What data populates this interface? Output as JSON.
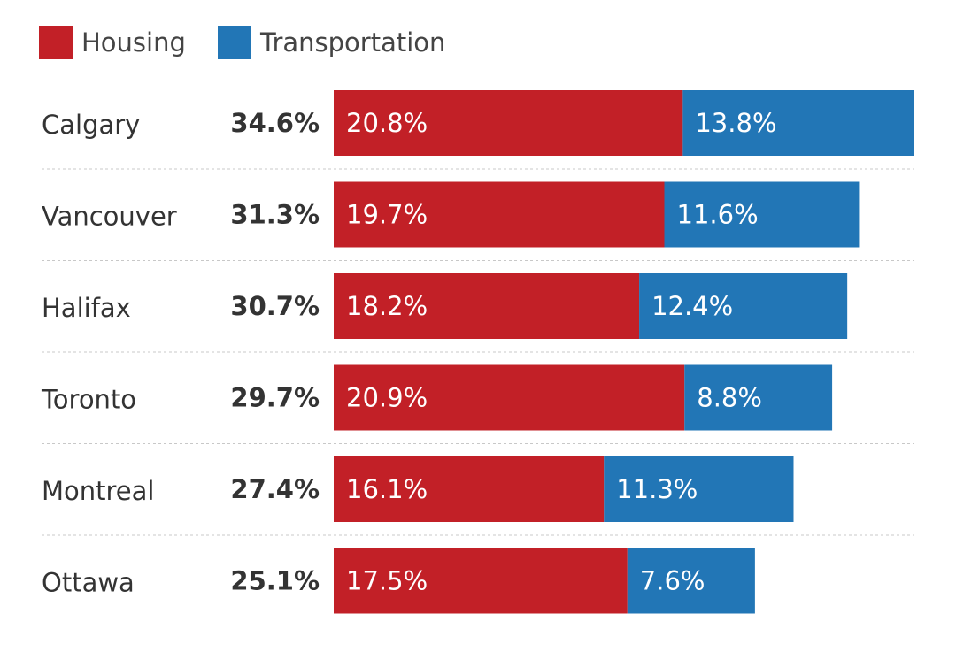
{
  "chart_data": {
    "type": "bar",
    "orientation": "horizontal",
    "stacked": true,
    "title": "",
    "xlabel": "",
    "ylabel": "",
    "categories": [
      "Calgary",
      "Vancouver",
      "Halifax",
      "Toronto",
      "Montreal",
      "Ottawa"
    ],
    "totals": [
      "34.6%",
      "31.3%",
      "30.7%",
      "29.7%",
      "27.4%",
      "25.1%"
    ],
    "series": [
      {
        "name": "Housing",
        "color": "#c22027",
        "values": [
          20.8,
          19.7,
          18.2,
          20.9,
          16.1,
          17.5
        ],
        "labels": [
          "20.8%",
          "19.7%",
          "18.2%",
          "20.9%",
          "16.1%",
          "17.5%"
        ]
      },
      {
        "name": "Transportation",
        "color": "#2276b6",
        "values": [
          13.8,
          11.6,
          12.4,
          8.8,
          11.3,
          7.6
        ],
        "labels": [
          "13.8%",
          "11.6%",
          "12.4%",
          "8.8%",
          "11.3%",
          "7.6%"
        ]
      }
    ],
    "xlim": [
      0,
      34.6
    ],
    "grid": false,
    "legend_position": "top-left"
  }
}
